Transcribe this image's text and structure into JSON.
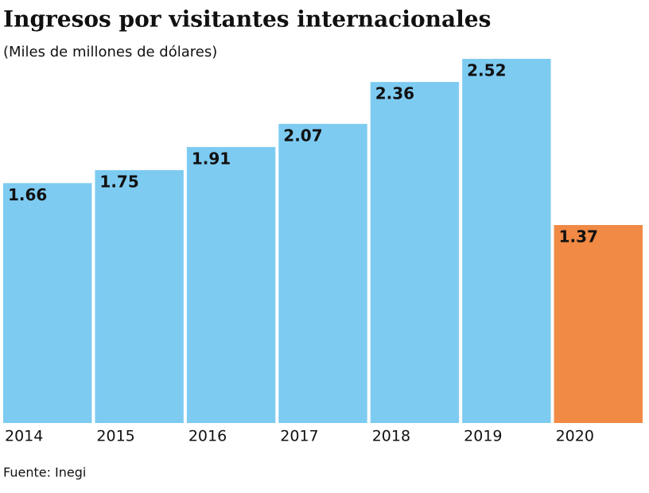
{
  "chart_data": {
    "type": "bar",
    "title": "Ingresos por visitantes internacionales",
    "subtitle": "(Miles de millones de dólares)",
    "source": "Fuente: Inegi",
    "categories": [
      "2014",
      "2015",
      "2016",
      "2017",
      "2018",
      "2019",
      "2020"
    ],
    "values": [
      1.66,
      1.75,
      1.91,
      2.07,
      2.36,
      2.52,
      1.37
    ],
    "colors": [
      "#7ecbf2",
      "#7ecbf2",
      "#7ecbf2",
      "#7ecbf2",
      "#7ecbf2",
      "#7ecbf2",
      "#f08a45"
    ],
    "ylim": [
      0,
      2.52
    ]
  }
}
